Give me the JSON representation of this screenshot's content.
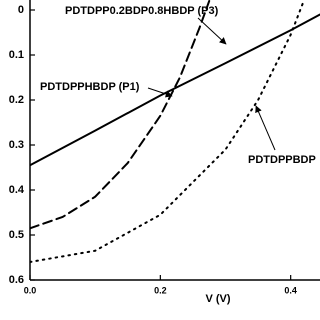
{
  "chart_data": {
    "type": "line",
    "x_label": "V (V)",
    "xlim": [
      0,
      0.445
    ],
    "xticks": [
      {
        "value": 0,
        "label": "0.0"
      },
      0.2,
      0.4
    ],
    "ylim": [
      -0.02,
      0.6
    ],
    "yticks": [
      0,
      0.1,
      0.2,
      0.3,
      0.4,
      0.5,
      0.6
    ],
    "y_inverted": true,
    "series": [
      {
        "name": "PDTDPPHBDP (P1)",
        "color": "#000000",
        "style": "solid",
        "x": [
          0,
          0.1,
          0.2,
          0.3,
          0.4,
          0.445
        ],
        "values": [
          0.345,
          0.268,
          0.19,
          0.118,
          0.045,
          0.01
        ]
      },
      {
        "name": "PDTDPP0.2BDP0.8HBDP (P3)",
        "color": "#000000",
        "style": "dashed",
        "x": [
          0,
          0.05,
          0.1,
          0.15,
          0.2,
          0.23,
          0.26,
          0.275
        ],
        "values": [
          0.485,
          0.46,
          0.415,
          0.34,
          0.235,
          0.15,
          0.04,
          -0.02
        ]
      },
      {
        "name": "PDTDPPBDP",
        "color": "#000000",
        "style": "dotted",
        "x": [
          0,
          0.1,
          0.2,
          0.3,
          0.35,
          0.4,
          0.42
        ],
        "values": [
          0.56,
          0.535,
          0.455,
          0.31,
          0.2,
          0.055,
          -0.02
        ]
      }
    ]
  }
}
